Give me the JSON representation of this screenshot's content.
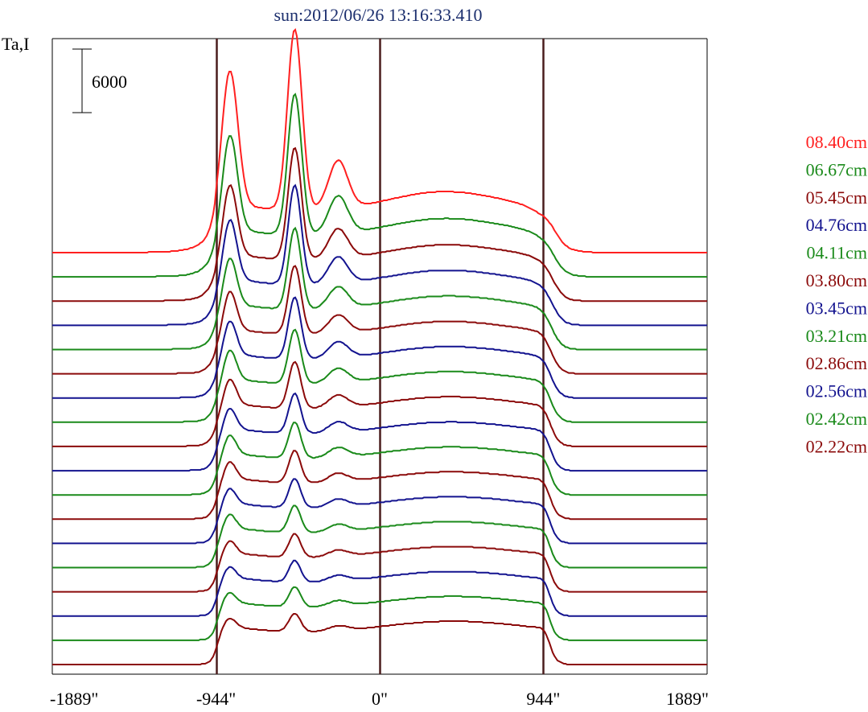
{
  "chart_data": {
    "type": "line",
    "title": "sun:2012/06/26 13:16:33.410",
    "ylabel": "Ta,I",
    "scale_bar_label": "6000",
    "x_ticks": [
      "-1889\"",
      "-944\"",
      "0\"",
      "944\"",
      "1889\""
    ],
    "x_tick_values": [
      -1889,
      -944,
      0,
      944,
      1889
    ],
    "xlim": [
      -1889,
      1889
    ],
    "vertical_lines_x": [
      -944,
      0,
      944
    ],
    "legend": {
      "placement": "right",
      "entries": [
        {
          "label": "08.40cm",
          "color": "#ff2020"
        },
        {
          "label": "06.67cm",
          "color": "#1a8a1a"
        },
        {
          "label": "05.45cm",
          "color": "#8b0a0a"
        },
        {
          "label": "04.76cm",
          "color": "#13138f"
        },
        {
          "label": "04.11cm",
          "color": "#1a8a1a"
        },
        {
          "label": "03.80cm",
          "color": "#8b0a0a"
        },
        {
          "label": "03.45cm",
          "color": "#13138f"
        },
        {
          "label": "03.21cm",
          "color": "#1a8a1a"
        },
        {
          "label": "02.86cm",
          "color": "#8b0a0a"
        },
        {
          "label": "02.56cm",
          "color": "#13138f"
        },
        {
          "label": "02.42cm",
          "color": "#1a8a1a"
        },
        {
          "label": "02.22cm",
          "color": "#8b0a0a"
        }
      ]
    },
    "series_colors": [
      "#ff2020",
      "#1a8a1a",
      "#8b0a0a",
      "#13138f",
      "#1a8a1a",
      "#8b0a0a",
      "#13138f",
      "#1a8a1a",
      "#8b0a0a",
      "#13138f",
      "#1a8a1a",
      "#8b0a0a",
      "#13138f",
      "#1a8a1a",
      "#8b0a0a",
      "#13138f",
      "#1a8a1a",
      "#8b0a0a"
    ],
    "series_peak_scale": [
      1.0,
      0.78,
      0.62,
      0.55,
      0.45,
      0.38,
      0.34,
      0.3,
      0.26,
      0.22,
      0.2,
      0.18,
      0.16,
      0.15,
      0.13,
      0.12,
      0.11,
      0.1
    ]
  },
  "colors": {
    "vline": "#4a1d1d",
    "frame": "#000000"
  }
}
